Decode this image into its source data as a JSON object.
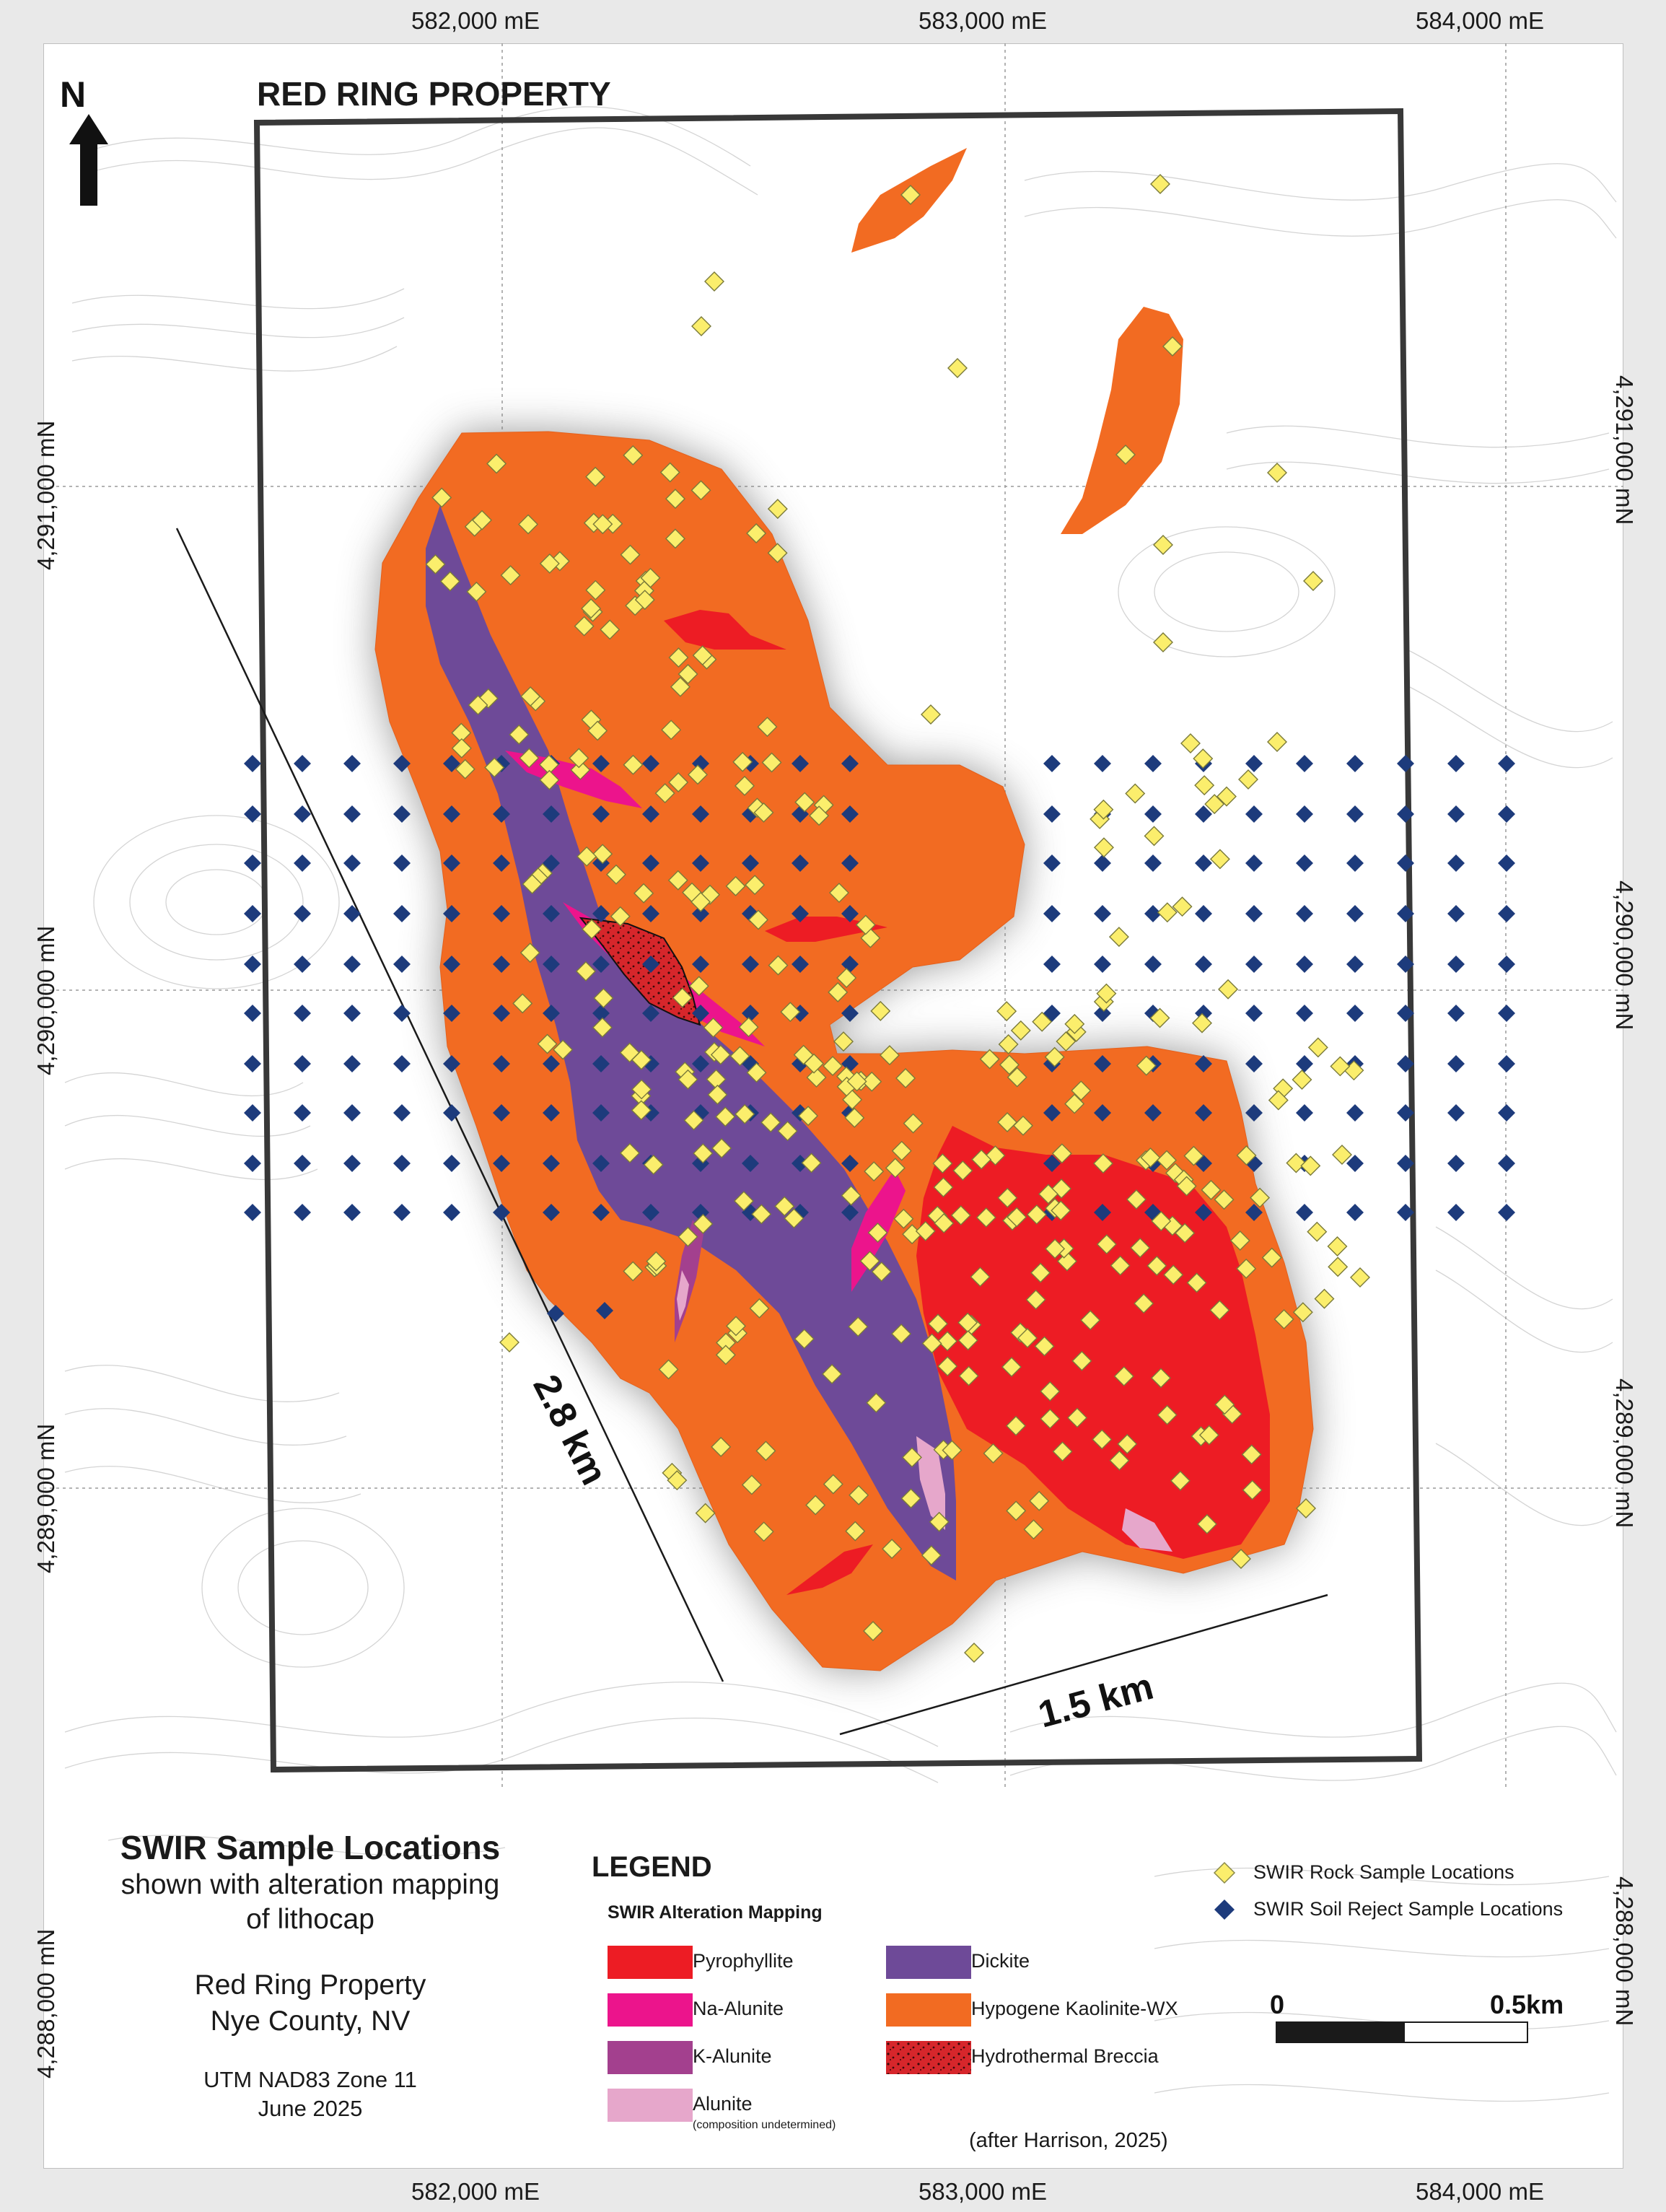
{
  "map": {
    "property_label": "RED RING PROPERTY",
    "north_label": "N",
    "easting_labels": [
      "582,000 mE",
      "583,000 mE",
      "584,000 mE"
    ],
    "northing_labels": [
      "4,291,000 mN",
      "4,290,000 mN",
      "4,289,000 mN",
      "4,288,000 mN"
    ],
    "dimension_long": "2.8 km",
    "dimension_short": "1.5 km",
    "colors": {
      "pyrophyllite": "#ed1c24",
      "na_alunite": "#ec148c",
      "k_alunite": "#a3408e",
      "alunite": "#e6a7cb",
      "dickite": "#6e4a98",
      "kaolinite": "#f26b22",
      "breccia": "#d6262b",
      "rock_sample": "#fbee6c",
      "soil_sample": "#1d3b7c"
    }
  },
  "title_block": {
    "title": "SWIR Sample Locations",
    "subtitle_line1": "shown with alteration mapping",
    "subtitle_line2": "of lithocap",
    "property": "Red Ring Property",
    "county": "Nye County, NV",
    "projection": "UTM NAD83 Zone 11",
    "date": "June 2025"
  },
  "legend": {
    "title": "LEGEND",
    "subtitle": "SWIR Alteration Mapping",
    "items": [
      {
        "label": "Pyrophyllite",
        "color": "#ed1c24"
      },
      {
        "label": "Na-Alunite",
        "color": "#ec148c"
      },
      {
        "label": "K-Alunite",
        "color": "#a3408e"
      },
      {
        "label": "Alunite",
        "note": "(composition undetermined)",
        "color": "#e6a7cb"
      },
      {
        "label": "Dickite",
        "color": "#6e4a98"
      },
      {
        "label": "Hypogene Kaolinite-WX",
        "color": "#f26b22"
      },
      {
        "label": "Hydrothermal Breccia",
        "color": "#d6262b"
      }
    ],
    "symbols": [
      {
        "label": "SWIR Rock Sample Locations",
        "icon": "yellow-diamond"
      },
      {
        "label": "SWIR Soil Reject Sample Locations",
        "icon": "blue-diamond"
      }
    ],
    "credit": "(after Harrison, 2025)"
  },
  "scale_bar": {
    "start_label": "0",
    "end_label": "0.5km"
  }
}
